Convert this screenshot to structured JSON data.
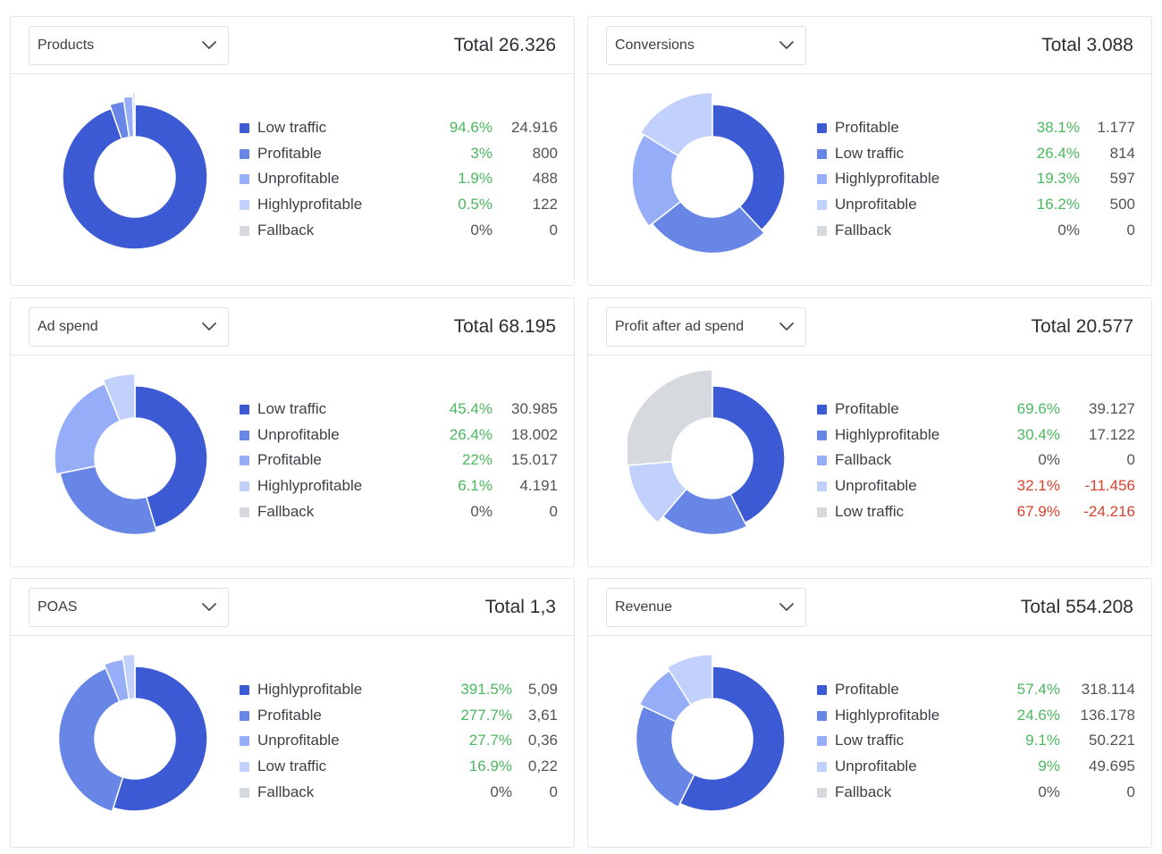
{
  "palette": [
    "#3c5ad4",
    "#6886e6",
    "#96adf8",
    "#c2d0fc",
    "#d6d9de"
  ],
  "cards": [
    {
      "metric": "Products",
      "total_label": "Total",
      "total": "26.326",
      "chart_data": {
        "type": "pie",
        "categories": [
          "Low traffic",
          "Profitable",
          "Unprofitable",
          "Highlyprofitable",
          "Fallback"
        ],
        "values": [
          24916,
          800,
          488,
          122,
          0
        ],
        "percents": [
          "94.6%",
          "3%",
          "1.9%",
          "0.5%",
          "0%"
        ],
        "display_values": [
          "24.916",
          "800",
          "488",
          "122",
          "0"
        ],
        "signs": [
          "pos",
          "pos",
          "pos",
          "pos",
          "zero"
        ]
      }
    },
    {
      "metric": "Conversions",
      "total_label": "Total",
      "total": "3.088",
      "chart_data": {
        "type": "pie",
        "categories": [
          "Profitable",
          "Low traffic",
          "Highlyprofitable",
          "Unprofitable",
          "Fallback"
        ],
        "values": [
          1177,
          814,
          597,
          500,
          0
        ],
        "percents": [
          "38.1%",
          "26.4%",
          "19.3%",
          "16.2%",
          "0%"
        ],
        "display_values": [
          "1.177",
          "814",
          "597",
          "500",
          "0"
        ],
        "signs": [
          "pos",
          "pos",
          "pos",
          "pos",
          "zero"
        ]
      }
    },
    {
      "metric": "Ad spend",
      "total_label": "Total",
      "total": "68.195",
      "chart_data": {
        "type": "pie",
        "categories": [
          "Low traffic",
          "Unprofitable",
          "Profitable",
          "Highlyprofitable",
          "Fallback"
        ],
        "values": [
          30985,
          18002,
          15017,
          4191,
          0
        ],
        "percents": [
          "45.4%",
          "26.4%",
          "22%",
          "6.1%",
          "0%"
        ],
        "display_values": [
          "30.985",
          "18.002",
          "15.017",
          "4.191",
          "0"
        ],
        "signs": [
          "pos",
          "pos",
          "pos",
          "pos",
          "zero"
        ]
      }
    },
    {
      "metric": "Profit after ad spend",
      "total_label": "Total",
      "total": "20.577",
      "chart_data": {
        "type": "pie",
        "categories": [
          "Profitable",
          "Highlyprofitable",
          "Fallback",
          "Unprofitable",
          "Low traffic"
        ],
        "values": [
          39127,
          17122,
          0,
          -11456,
          -24216
        ],
        "percents": [
          "69.6%",
          "30.4%",
          "0%",
          "32.1%",
          "67.9%"
        ],
        "display_values": [
          "39.127",
          "17.122",
          "0",
          "-11.456",
          "-24.216"
        ],
        "signs": [
          "pos",
          "pos",
          "zero",
          "neg",
          "neg"
        ]
      }
    },
    {
      "metric": "POAS",
      "total_label": "Total",
      "total": "1,3",
      "chart_data": {
        "type": "pie",
        "categories": [
          "Highlyprofitable",
          "Profitable",
          "Unprofitable",
          "Low traffic",
          "Fallback"
        ],
        "values": [
          5.09,
          3.61,
          0.36,
          0.22,
          0
        ],
        "percents": [
          "391.5%",
          "277.7%",
          "27.7%",
          "16.9%",
          "0%"
        ],
        "display_values": [
          "5,09",
          "3,61",
          "0,36",
          "0,22",
          "0"
        ],
        "signs": [
          "pos",
          "pos",
          "pos",
          "pos",
          "zero"
        ]
      }
    },
    {
      "metric": "Revenue",
      "total_label": "Total",
      "total": "554.208",
      "chart_data": {
        "type": "pie",
        "categories": [
          "Profitable",
          "Highlyprofitable",
          "Low traffic",
          "Unprofitable",
          "Fallback"
        ],
        "values": [
          318114,
          136178,
          50221,
          49695,
          0
        ],
        "percents": [
          "57.4%",
          "24.6%",
          "9.1%",
          "9%",
          "0%"
        ],
        "display_values": [
          "318.114",
          "136.178",
          "50.221",
          "49.695",
          "0"
        ],
        "signs": [
          "pos",
          "pos",
          "pos",
          "pos",
          "zero"
        ]
      }
    }
  ]
}
